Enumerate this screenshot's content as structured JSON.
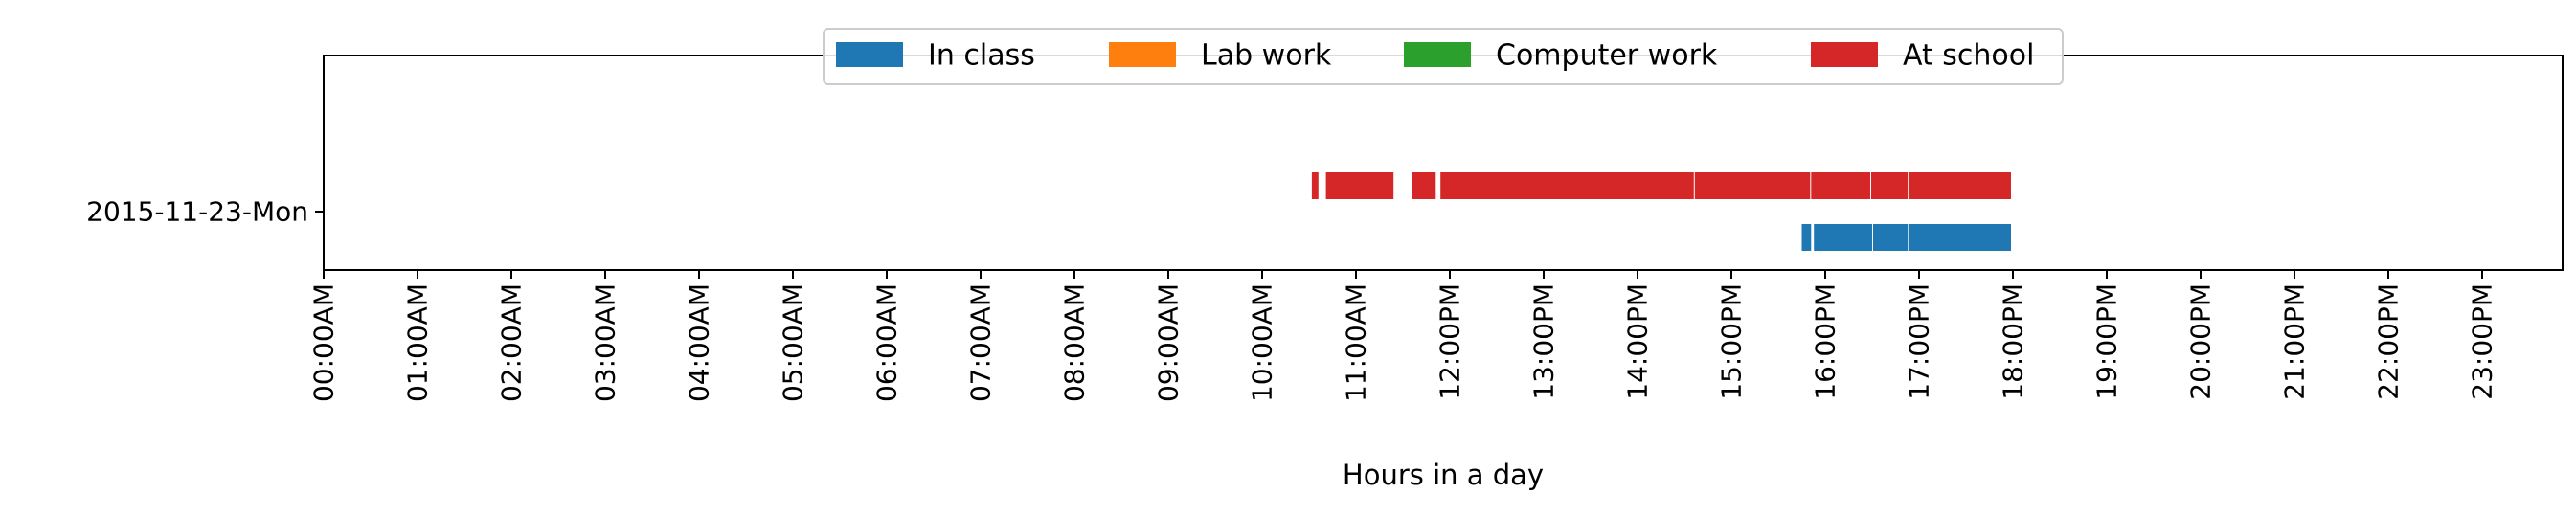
{
  "chart_data": {
    "type": "bar",
    "orientation": "horizontal-timeline",
    "xlabel": "Hours in a day",
    "ylabel": "",
    "xlim": [
      0,
      24
    ],
    "x_ticks": [
      "00:00AM",
      "01:00AM",
      "02:00AM",
      "03:00AM",
      "04:00AM",
      "05:00AM",
      "06:00AM",
      "07:00AM",
      "08:00AM",
      "09:00AM",
      "10:00AM",
      "11:00AM",
      "12:00PM",
      "13:00PM",
      "14:00PM",
      "15:00PM",
      "16:00PM",
      "17:00PM",
      "18:00PM",
      "19:00PM",
      "20:00PM",
      "21:00PM",
      "22:00PM",
      "23:00PM"
    ],
    "categories": [
      "2015-11-23-Mon"
    ],
    "legend": {
      "placement": "top-center",
      "entries": [
        "In class",
        "Lab work",
        "Computer work",
        "At school"
      ]
    },
    "series": [
      {
        "name": "In class",
        "color": "#1f77b4",
        "row": "2015-11-23-Mon",
        "intervals": [
          [
            15.75,
            15.85
          ],
          [
            15.88,
            16.5
          ],
          [
            16.51,
            16.88
          ],
          [
            16.89,
            17.98
          ]
        ]
      },
      {
        "name": "Lab work",
        "color": "#ff7f0e",
        "row": "2015-11-23-Mon",
        "intervals": []
      },
      {
        "name": "Computer work",
        "color": "#2ca02c",
        "row": "2015-11-23-Mon",
        "intervals": []
      },
      {
        "name": "At school",
        "color": "#d62728",
        "row": "2015-11-23-Mon",
        "intervals": [
          [
            10.53,
            10.6
          ],
          [
            10.68,
            11.4
          ],
          [
            11.6,
            11.85
          ],
          [
            11.9,
            14.6
          ],
          [
            14.61,
            15.84
          ],
          [
            15.85,
            16.48
          ],
          [
            16.49,
            16.88
          ],
          [
            16.89,
            17.98
          ]
        ]
      }
    ]
  }
}
